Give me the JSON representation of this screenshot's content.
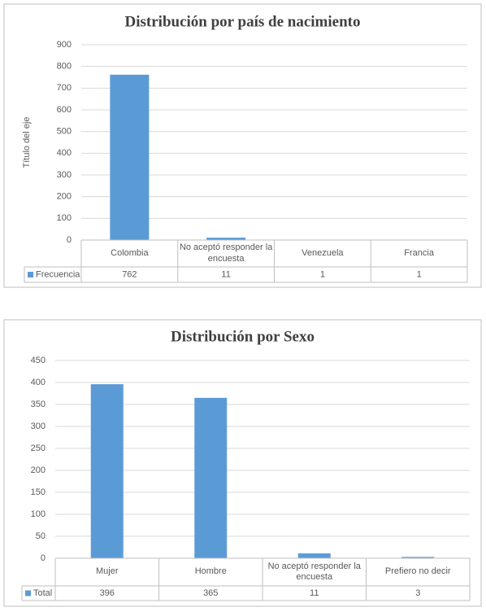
{
  "chart_data": [
    {
      "type": "bar",
      "title": "Distribución por país de nacimiento",
      "y_label": "Título del eje",
      "categories": [
        "Colombia",
        "No aceptó responder la encuesta",
        "Venezuela",
        "Francia"
      ],
      "series": [
        {
          "name": "Frecuencia",
          "color": "#5b9bd5",
          "values": [
            762,
            11,
            1,
            1
          ]
        }
      ],
      "ylim": [
        0,
        900
      ],
      "yticks": [
        0,
        100,
        200,
        300,
        400,
        500,
        600,
        700,
        800,
        900
      ],
      "grid": true,
      "data_table": true
    },
    {
      "type": "bar",
      "title": "Distribución por Sexo",
      "categories": [
        "Mujer",
        "Hombre",
        "No aceptó responder la encuesta",
        "Prefiero no decir"
      ],
      "series": [
        {
          "name": "Total",
          "color": "#5b9bd5",
          "values": [
            396,
            365,
            11,
            3
          ]
        }
      ],
      "ylim": [
        0,
        450
      ],
      "yticks": [
        0,
        50,
        100,
        150,
        200,
        250,
        300,
        350,
        400,
        450
      ],
      "grid": true,
      "data_table": true
    }
  ]
}
